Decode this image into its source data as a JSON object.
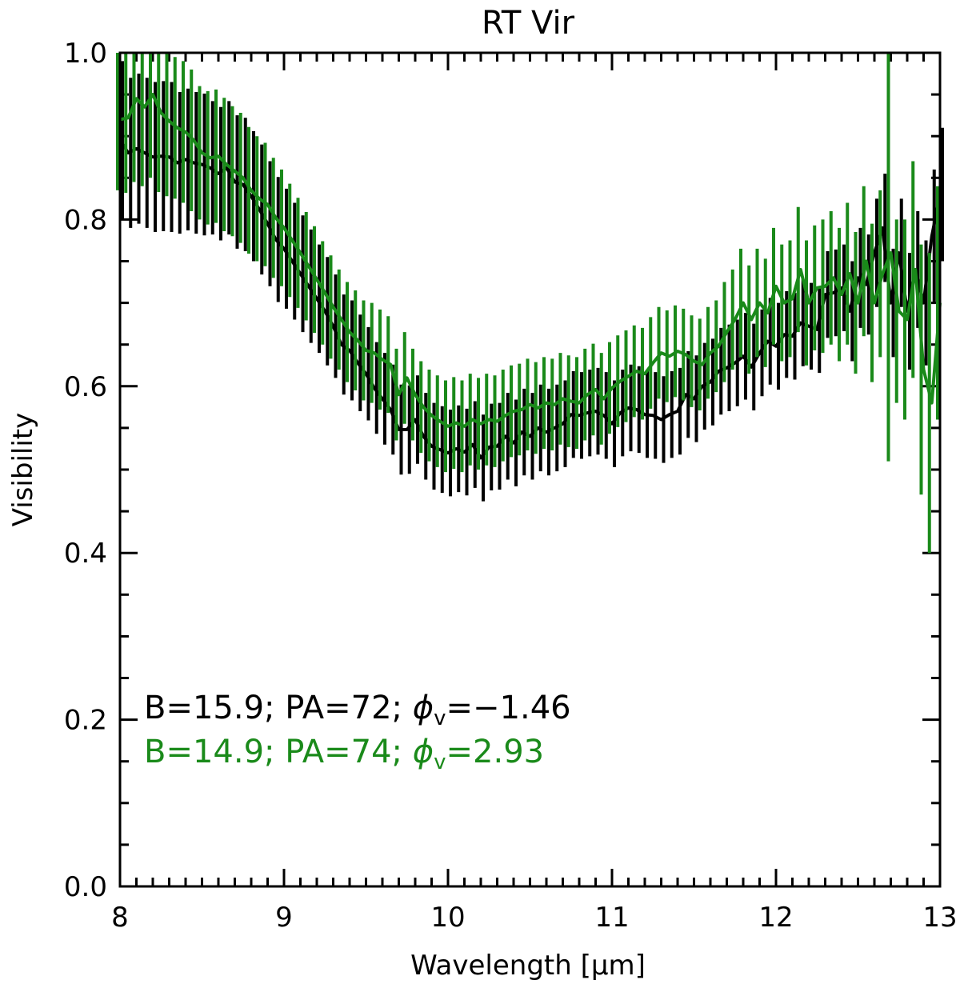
{
  "chart_data": {
    "type": "line",
    "title": "RT Vir",
    "xlabel": "Wavelength [μm]",
    "ylabel": "Visibility",
    "xlim": [
      8,
      13
    ],
    "ylim": [
      0.0,
      1.0
    ],
    "x_ticks": [
      8,
      9,
      10,
      11,
      12,
      13
    ],
    "y_ticks": [
      0.0,
      0.2,
      0.4,
      0.6,
      0.8,
      1.0
    ],
    "x_tick_labels": [
      "8",
      "9",
      "10",
      "11",
      "12",
      "13"
    ],
    "y_tick_labels": [
      "0.0",
      "0.2",
      "0.4",
      "0.6",
      "0.8",
      "1.0"
    ],
    "series": [
      {
        "name": "B=15.9; PA=72",
        "color": "#000000",
        "legend_text": "B=15.9;  PA=72;  ",
        "phi_label": "ϕ",
        "phi_sub": "v",
        "phi_value": "=−1.46",
        "points": [
          [
            8.0,
            0.895,
            0.095
          ],
          [
            8.05,
            0.88,
            0.09
          ],
          [
            8.1,
            0.885,
            0.09
          ],
          [
            8.15,
            0.88,
            0.09
          ],
          [
            8.2,
            0.875,
            0.09
          ],
          [
            8.25,
            0.876,
            0.09
          ],
          [
            8.3,
            0.875,
            0.09
          ],
          [
            8.35,
            0.868,
            0.085
          ],
          [
            8.4,
            0.872,
            0.085
          ],
          [
            8.45,
            0.868,
            0.085
          ],
          [
            8.5,
            0.866,
            0.085
          ],
          [
            8.55,
            0.862,
            0.08
          ],
          [
            8.6,
            0.855,
            0.08
          ],
          [
            8.65,
            0.862,
            0.08
          ],
          [
            8.7,
            0.845,
            0.08
          ],
          [
            8.75,
            0.842,
            0.08
          ],
          [
            8.8,
            0.828,
            0.078
          ],
          [
            8.85,
            0.812,
            0.078
          ],
          [
            8.9,
            0.795,
            0.075
          ],
          [
            8.95,
            0.776,
            0.075
          ],
          [
            9.0,
            0.765,
            0.072
          ],
          [
            9.05,
            0.75,
            0.07
          ],
          [
            9.1,
            0.735,
            0.07
          ],
          [
            9.15,
            0.72,
            0.068
          ],
          [
            9.2,
            0.705,
            0.065
          ],
          [
            9.25,
            0.69,
            0.065
          ],
          [
            9.3,
            0.672,
            0.062
          ],
          [
            9.35,
            0.65,
            0.06
          ],
          [
            9.4,
            0.643,
            0.06
          ],
          [
            9.45,
            0.628,
            0.058
          ],
          [
            9.5,
            0.615,
            0.056
          ],
          [
            9.55,
            0.598,
            0.055
          ],
          [
            9.6,
            0.585,
            0.055
          ],
          [
            9.65,
            0.572,
            0.054
          ],
          [
            9.7,
            0.548,
            0.054
          ],
          [
            9.75,
            0.548,
            0.053
          ],
          [
            9.8,
            0.56,
            0.053
          ],
          [
            9.85,
            0.54,
            0.052
          ],
          [
            9.9,
            0.528,
            0.052
          ],
          [
            9.95,
            0.524,
            0.052
          ],
          [
            10.0,
            0.52,
            0.052
          ],
          [
            10.05,
            0.525,
            0.052
          ],
          [
            10.1,
            0.521,
            0.052
          ],
          [
            10.15,
            0.53,
            0.052
          ],
          [
            10.2,
            0.514,
            0.052
          ],
          [
            10.25,
            0.527,
            0.052
          ],
          [
            10.3,
            0.528,
            0.052
          ],
          [
            10.35,
            0.54,
            0.052
          ],
          [
            10.4,
            0.532,
            0.052
          ],
          [
            10.45,
            0.545,
            0.052
          ],
          [
            10.5,
            0.54,
            0.052
          ],
          [
            10.55,
            0.55,
            0.052
          ],
          [
            10.6,
            0.545,
            0.052
          ],
          [
            10.65,
            0.55,
            0.052
          ],
          [
            10.7,
            0.555,
            0.052
          ],
          [
            10.75,
            0.566,
            0.052
          ],
          [
            10.8,
            0.565,
            0.052
          ],
          [
            10.85,
            0.568,
            0.052
          ],
          [
            10.9,
            0.57,
            0.052
          ],
          [
            10.95,
            0.565,
            0.052
          ],
          [
            11.0,
            0.555,
            0.052
          ],
          [
            11.05,
            0.568,
            0.052
          ],
          [
            11.1,
            0.574,
            0.052
          ],
          [
            11.15,
            0.572,
            0.052
          ],
          [
            11.2,
            0.566,
            0.052
          ],
          [
            11.25,
            0.565,
            0.052
          ],
          [
            11.3,
            0.56,
            0.052
          ],
          [
            11.35,
            0.566,
            0.052
          ],
          [
            11.4,
            0.57,
            0.052
          ],
          [
            11.45,
            0.59,
            0.052
          ],
          [
            11.5,
            0.585,
            0.052
          ],
          [
            11.55,
            0.6,
            0.052
          ],
          [
            11.6,
            0.605,
            0.052
          ],
          [
            11.65,
            0.618,
            0.052
          ],
          [
            11.7,
            0.622,
            0.052
          ],
          [
            11.75,
            0.628,
            0.052
          ],
          [
            11.8,
            0.636,
            0.052
          ],
          [
            11.85,
            0.623,
            0.052
          ],
          [
            11.9,
            0.64,
            0.052
          ],
          [
            11.95,
            0.654,
            0.052
          ],
          [
            12.0,
            0.648,
            0.052
          ],
          [
            12.05,
            0.662,
            0.052
          ],
          [
            12.1,
            0.66,
            0.052
          ],
          [
            12.15,
            0.676,
            0.052
          ],
          [
            12.2,
            0.672,
            0.052
          ],
          [
            12.25,
            0.668,
            0.052
          ],
          [
            12.3,
            0.71,
            0.052
          ],
          [
            12.35,
            0.712,
            0.052
          ],
          [
            12.4,
            0.718,
            0.052
          ],
          [
            12.45,
            0.69,
            0.06
          ],
          [
            12.5,
            0.73,
            0.06
          ],
          [
            12.55,
            0.722,
            0.06
          ],
          [
            12.6,
            0.76,
            0.065
          ],
          [
            12.65,
            0.79,
            0.065
          ],
          [
            12.7,
            0.7,
            0.065
          ],
          [
            12.75,
            0.76,
            0.065
          ],
          [
            12.8,
            0.69,
            0.07
          ],
          [
            12.85,
            0.74,
            0.07
          ],
          [
            12.9,
            0.7,
            0.075
          ],
          [
            12.95,
            0.78,
            0.08
          ],
          [
            13.0,
            0.83,
            0.08
          ]
        ]
      },
      {
        "name": "B=14.9; PA=74",
        "color": "#1a8a1a",
        "legend_text": "B=14.9;  PA=74;  ",
        "phi_label": "ϕ",
        "phi_sub": "v",
        "phi_value": "=2.93",
        "points": [
          [
            8.0,
            0.92,
            0.085
          ],
          [
            8.05,
            0.922,
            0.09
          ],
          [
            8.1,
            0.945,
            0.1
          ],
          [
            8.15,
            0.935,
            0.095
          ],
          [
            8.2,
            0.95,
            0.1
          ],
          [
            8.25,
            0.928,
            0.095
          ],
          [
            8.3,
            0.918,
            0.09
          ],
          [
            8.35,
            0.91,
            0.085
          ],
          [
            8.4,
            0.905,
            0.085
          ],
          [
            8.45,
            0.895,
            0.085
          ],
          [
            8.5,
            0.88,
            0.08
          ],
          [
            8.55,
            0.874,
            0.08
          ],
          [
            8.6,
            0.876,
            0.08
          ],
          [
            8.65,
            0.866,
            0.08
          ],
          [
            8.7,
            0.858,
            0.078
          ],
          [
            8.75,
            0.85,
            0.078
          ],
          [
            8.8,
            0.835,
            0.076
          ],
          [
            8.85,
            0.825,
            0.075
          ],
          [
            8.9,
            0.818,
            0.074
          ],
          [
            8.95,
            0.802,
            0.072
          ],
          [
            9.0,
            0.79,
            0.07
          ],
          [
            9.05,
            0.775,
            0.068
          ],
          [
            9.1,
            0.76,
            0.066
          ],
          [
            9.15,
            0.744,
            0.065
          ],
          [
            9.2,
            0.728,
            0.064
          ],
          [
            9.25,
            0.712,
            0.062
          ],
          [
            9.3,
            0.695,
            0.062
          ],
          [
            9.35,
            0.68,
            0.06
          ],
          [
            9.4,
            0.665,
            0.06
          ],
          [
            9.45,
            0.655,
            0.06
          ],
          [
            9.5,
            0.643,
            0.06
          ],
          [
            9.55,
            0.64,
            0.06
          ],
          [
            9.6,
            0.632,
            0.06
          ],
          [
            9.65,
            0.626,
            0.058
          ],
          [
            9.7,
            0.59,
            0.055
          ],
          [
            9.75,
            0.61,
            0.055
          ],
          [
            9.8,
            0.59,
            0.055
          ],
          [
            9.85,
            0.575,
            0.055
          ],
          [
            9.9,
            0.565,
            0.055
          ],
          [
            9.95,
            0.558,
            0.055
          ],
          [
            10.0,
            0.552,
            0.055
          ],
          [
            10.05,
            0.556,
            0.055
          ],
          [
            10.1,
            0.552,
            0.055
          ],
          [
            10.15,
            0.56,
            0.055
          ],
          [
            10.2,
            0.555,
            0.055
          ],
          [
            10.25,
            0.56,
            0.055
          ],
          [
            10.3,
            0.558,
            0.055
          ],
          [
            10.35,
            0.565,
            0.055
          ],
          [
            10.4,
            0.57,
            0.055
          ],
          [
            10.45,
            0.572,
            0.055
          ],
          [
            10.5,
            0.578,
            0.055
          ],
          [
            10.55,
            0.574,
            0.055
          ],
          [
            10.6,
            0.58,
            0.055
          ],
          [
            10.65,
            0.578,
            0.055
          ],
          [
            10.7,
            0.585,
            0.055
          ],
          [
            10.75,
            0.582,
            0.055
          ],
          [
            10.8,
            0.58,
            0.055
          ],
          [
            10.85,
            0.59,
            0.055
          ],
          [
            10.9,
            0.596,
            0.055
          ],
          [
            10.95,
            0.585,
            0.055
          ],
          [
            11.0,
            0.598,
            0.055
          ],
          [
            11.05,
            0.606,
            0.055
          ],
          [
            11.1,
            0.612,
            0.055
          ],
          [
            11.15,
            0.618,
            0.055
          ],
          [
            11.2,
            0.615,
            0.055
          ],
          [
            11.25,
            0.628,
            0.055
          ],
          [
            11.3,
            0.64,
            0.055
          ],
          [
            11.35,
            0.636,
            0.055
          ],
          [
            11.4,
            0.642,
            0.055
          ],
          [
            11.45,
            0.638,
            0.055
          ],
          [
            11.5,
            0.63,
            0.055
          ],
          [
            11.55,
            0.626,
            0.055
          ],
          [
            11.6,
            0.64,
            0.055
          ],
          [
            11.65,
            0.648,
            0.055
          ],
          [
            11.7,
            0.665,
            0.06
          ],
          [
            11.75,
            0.68,
            0.06
          ],
          [
            11.8,
            0.7,
            0.065
          ],
          [
            11.85,
            0.68,
            0.065
          ],
          [
            11.9,
            0.7,
            0.065
          ],
          [
            11.95,
            0.688,
            0.065
          ],
          [
            12.0,
            0.72,
            0.07
          ],
          [
            12.05,
            0.7,
            0.07
          ],
          [
            12.1,
            0.705,
            0.07
          ],
          [
            12.15,
            0.74,
            0.075
          ],
          [
            12.2,
            0.7,
            0.075
          ],
          [
            12.25,
            0.718,
            0.075
          ],
          [
            12.3,
            0.72,
            0.08
          ],
          [
            12.35,
            0.73,
            0.08
          ],
          [
            12.4,
            0.71,
            0.08
          ],
          [
            12.45,
            0.735,
            0.085
          ],
          [
            12.5,
            0.7,
            0.085
          ],
          [
            12.55,
            0.75,
            0.09
          ],
          [
            12.6,
            0.7,
            0.095
          ],
          [
            12.65,
            0.735,
            0.1
          ],
          [
            12.7,
            0.76,
            0.25
          ],
          [
            12.75,
            0.69,
            0.11
          ],
          [
            12.8,
            0.68,
            0.12
          ],
          [
            12.85,
            0.74,
            0.13
          ],
          [
            12.9,
            0.62,
            0.15
          ],
          [
            12.95,
            0.58,
            0.18
          ],
          [
            13.0,
            0.7,
            0.14
          ]
        ]
      }
    ]
  }
}
